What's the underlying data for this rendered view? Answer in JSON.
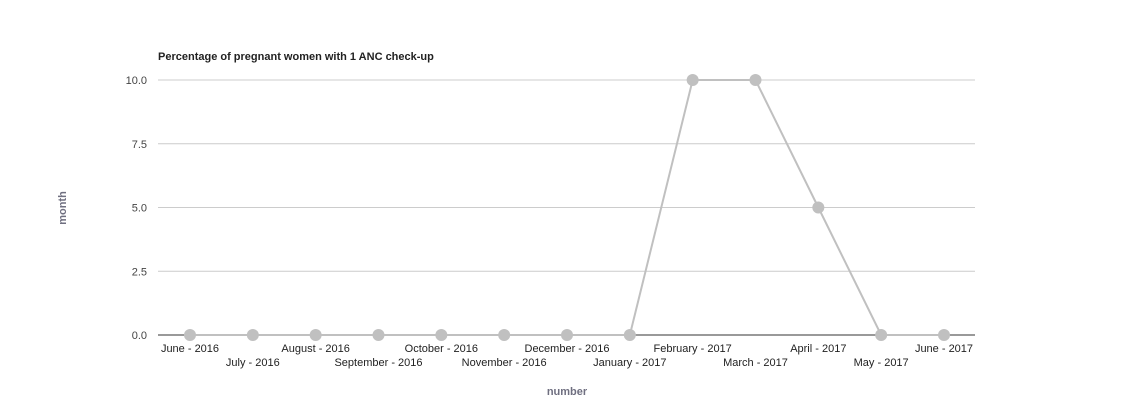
{
  "chart_data": {
    "type": "line",
    "title": "Percentage of pregnant women with 1 ANC check-up",
    "xlabel": "number",
    "ylabel": "month",
    "categories": [
      "June - 2016",
      "July - 2016",
      "August - 2016",
      "September - 2016",
      "October - 2016",
      "November - 2016",
      "December - 2016",
      "January - 2017",
      "February - 2017",
      "March - 2017",
      "April - 2017",
      "May - 2017",
      "June - 2017"
    ],
    "series": [
      {
        "values": [
          0,
          0,
          0,
          0,
          0,
          0,
          0,
          0,
          10,
          10,
          5,
          0,
          0
        ]
      }
    ],
    "ylim": [
      0,
      10
    ],
    "yticks": [
      "0.0",
      "2.5",
      "5.0",
      "7.5",
      "10.0"
    ],
    "grid": true,
    "legend": "none",
    "colors": {
      "series": "#c0c0c0",
      "grid": "#cccccc",
      "baseline": "#333333",
      "axis_label": "#6f6f80"
    }
  }
}
